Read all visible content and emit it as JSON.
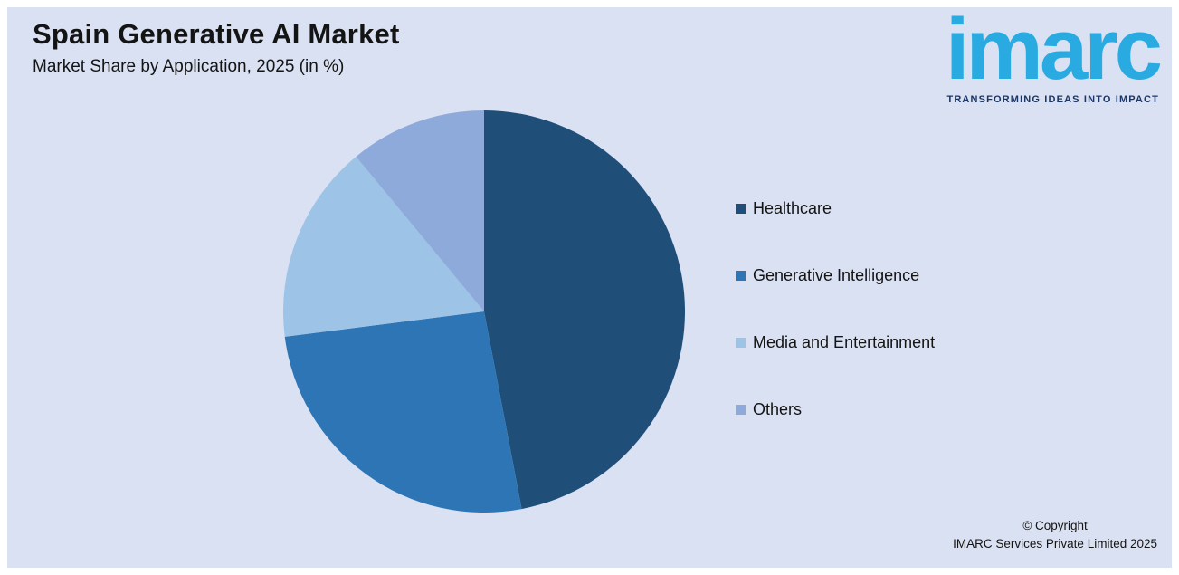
{
  "chart_data": {
    "type": "pie",
    "title": "Spain Generative AI Market",
    "subtitle": "Market Share by Application, 2025 (in %)",
    "labels": [
      "Healthcare",
      "Generative Intelligence",
      "Media and Entertainment",
      "Others"
    ],
    "values": [
      47,
      26,
      16,
      11
    ],
    "colors": [
      "#1f4e79",
      "#2e75b6",
      "#9dc3e6",
      "#8eaadb"
    ],
    "start_angle_deg": 0,
    "direction": "clockwise",
    "legend_position": "right",
    "data_labels_shown": false
  },
  "logo": {
    "wordmark": "imarc",
    "tagline": "TRANSFORMING IDEAS INTO IMPACT",
    "wordmark_color": "#29abe2",
    "tagline_color": "#1b3664"
  },
  "footer": {
    "copyright_line1": "© Copyright",
    "copyright_line2": "IMARC Services Private Limited 2025"
  },
  "panel": {
    "background_color": "#d9e1f2"
  }
}
